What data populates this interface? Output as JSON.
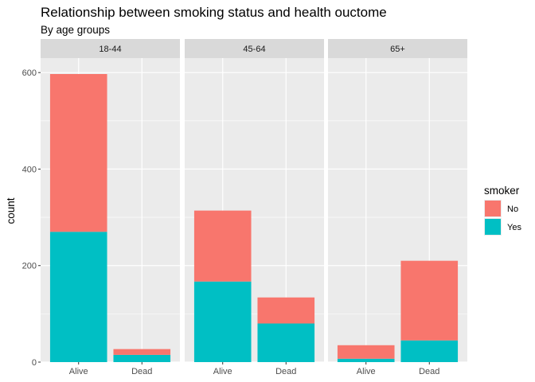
{
  "chart_data": {
    "type": "bar",
    "stacked": true,
    "faceted": true,
    "title": "Relationship between smoking status and health ouctome",
    "subtitle": "By age groups",
    "ylabel": "count",
    "xlabel": "",
    "ylim": [
      0,
      630
    ],
    "yticks": [
      0,
      200,
      400,
      600
    ],
    "grid": true,
    "legend": {
      "title": "smoker",
      "position": "right",
      "entries": [
        {
          "label": "No",
          "color": "#F8766D"
        },
        {
          "label": "Yes",
          "color": "#00BFC4"
        }
      ]
    },
    "categories": [
      "Alive",
      "Dead"
    ],
    "facets": [
      {
        "label": "18-44",
        "series": [
          {
            "name": "Yes",
            "values": [
              270,
              15
            ]
          },
          {
            "name": "No",
            "values": [
              327,
              12
            ]
          }
        ]
      },
      {
        "label": "45-64",
        "series": [
          {
            "name": "Yes",
            "values": [
              167,
              80
            ]
          },
          {
            "name": "No",
            "values": [
              147,
              54
            ]
          }
        ]
      },
      {
        "label": "65+",
        "series": [
          {
            "name": "Yes",
            "values": [
              7,
              45
            ]
          },
          {
            "name": "No",
            "values": [
              28,
              165
            ]
          }
        ]
      }
    ]
  }
}
